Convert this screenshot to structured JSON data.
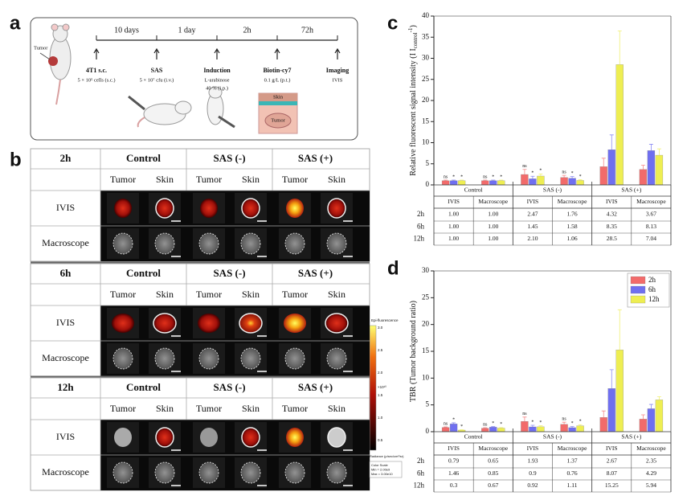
{
  "panel_a": {
    "label": "a",
    "intervals": [
      "10 days",
      "1 day",
      "2h",
      "72h"
    ],
    "steps": [
      {
        "title": "4T1 s.c.",
        "lines": [
          "5 × 10⁵ cells (s.c.)"
        ]
      },
      {
        "title": "SAS",
        "lines": [
          "5 × 10⁷ cfu (i.v.)"
        ]
      },
      {
        "title": "Induction",
        "lines": [
          "L-arabinose",
          "40 % (i.p.)"
        ]
      },
      {
        "title": "Biotin-cy7",
        "lines": [
          "0.1 g/L (p.t.)"
        ]
      },
      {
        "title": "Imaging",
        "lines": [
          "IVIS"
        ]
      }
    ],
    "mouse_label": "Tumor",
    "skin_labels": [
      "Skin",
      "Tumor"
    ]
  },
  "panel_b": {
    "label": "b",
    "times": [
      "2h",
      "6h",
      "12h"
    ],
    "groups": [
      "Control",
      "SAS (-)",
      "SAS (+)"
    ],
    "columns": [
      "Tumor",
      "Skin"
    ],
    "rows": [
      "IVIS",
      "Macroscope"
    ],
    "colorbar": {
      "title": "Epi-fluorescence",
      "ticks": [
        "3.0",
        "2.5",
        "2.0",
        "1.5",
        "1.0",
        "0.5"
      ],
      "exponent": "×10¹⁰",
      "unit": "Radiance (p/sec/cm²/sr)",
      "scale": [
        "Color Scale",
        "Min = 2.00e9",
        "Max = 3.00e10"
      ]
    }
  },
  "chart_data": [
    {
      "type": "bar",
      "panel": "c",
      "ylabel": "Relative fluorescent signal intensity (I I",
      "ylabel_sub": "control",
      "ylabel_sup": "-1",
      "ylabel_end": ")",
      "groups": [
        "Control",
        "SAS (-)",
        "SAS (+)"
      ],
      "categories": [
        "IVIS",
        "Macroscope",
        "IVIS",
        "Macroscope",
        "IVIS",
        "Macroscope"
      ],
      "ylim": [
        0,
        40
      ],
      "yticks": [
        0,
        5,
        10,
        15,
        20,
        25,
        30,
        35,
        40
      ],
      "series": [
        {
          "name": "2h",
          "color": "#f26b6b",
          "values": [
            1,
            1,
            2.47,
            1.76,
            4.32,
            3.67
          ],
          "value_labels": [
            "1.00",
            "1.00",
            "2.47",
            "1.76",
            "4.32",
            "3.67"
          ],
          "errors": [
            0.15,
            0.15,
            1.2,
            0.5,
            2,
            1
          ]
        },
        {
          "name": "6h",
          "color": "#6f6ff0",
          "values": [
            1,
            1,
            1.45,
            1.58,
            8.35,
            8.13
          ],
          "value_labels": [
            "1.00",
            "1.00",
            "1.45",
            "1.58",
            "8.35",
            "8.13"
          ],
          "errors": [
            0.15,
            0.15,
            0.6,
            0.4,
            3.5,
            1.5
          ]
        },
        {
          "name": "12h",
          "color": "#eeee52",
          "values": [
            1,
            1,
            2.1,
            1.06,
            28.5,
            7.04
          ],
          "value_labels": [
            "1.00",
            "1.00",
            "2.10",
            "1.06",
            "28.5",
            "7.04"
          ],
          "errors": [
            0.15,
            0.15,
            0.5,
            0.2,
            8,
            1.5
          ]
        }
      ],
      "significance": [
        [
          "ns",
          "*",
          "*"
        ],
        [
          "ns",
          "*",
          "*"
        ],
        [
          "ns",
          "*",
          "*"
        ],
        [
          "ns",
          "*",
          "*"
        ]
      ],
      "legend": false
    },
    {
      "type": "bar",
      "panel": "d",
      "ylabel": "TBR (Tumor background ratio)",
      "groups": [
        "Control",
        "SAS (-)",
        "SAS (+)"
      ],
      "categories": [
        "IVIS",
        "Macroscope",
        "IVIS",
        "Macroscope",
        "IVIS",
        "Macroscope"
      ],
      "ylim": [
        0,
        30
      ],
      "yticks": [
        0,
        5,
        10,
        15,
        20,
        25,
        30
      ],
      "series": [
        {
          "name": "2h",
          "color": "#f26b6b",
          "values": [
            0.79,
            0.65,
            1.93,
            1.37,
            2.67,
            2.35
          ],
          "errors": [
            0.1,
            0.1,
            0.8,
            0.4,
            1.2,
            0.8
          ]
        },
        {
          "name": "6h",
          "color": "#6f6ff0",
          "values": [
            1.46,
            0.85,
            0.9,
            0.76,
            8.07,
            4.29
          ],
          "errors": [
            0.2,
            0.1,
            0.3,
            0.2,
            3.5,
            0.8
          ]
        },
        {
          "name": "12h",
          "color": "#eeee52",
          "values": [
            0.3,
            0.67,
            0.92,
            1.11,
            15.25,
            5.94
          ],
          "errors": [
            0.05,
            0.1,
            0.2,
            0.2,
            7.5,
            0.6
          ]
        }
      ],
      "significance": [
        [
          "ns",
          "*",
          "*"
        ],
        [
          "ns",
          "*",
          "*"
        ],
        [
          "ns",
          "*",
          "*"
        ],
        [
          "ns",
          "*",
          "*"
        ]
      ],
      "legend": "upper right"
    }
  ]
}
